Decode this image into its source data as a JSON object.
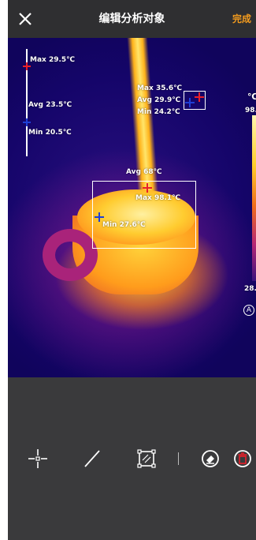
{
  "topbar": {
    "close_icon": "close-icon",
    "title": "编辑分析对象",
    "done_label": "完成",
    "done_color": "#f39b1e"
  },
  "line_tool": {
    "max_label": "Max 29.5℃",
    "avg_label": "Avg 23.5℃",
    "min_label": "Min 20.5℃"
  },
  "small_box": {
    "max_label": "Max 35.6℃",
    "avg_label": "Avg 29.9℃",
    "min_label": "Min 24.2℃"
  },
  "big_box": {
    "avg_label": "Avg 68℃",
    "max_label": "Max 98.1℃",
    "min_label": "Min 27.6℃"
  },
  "scale": {
    "unit": "℃",
    "top_value": "98.",
    "bottom_value": "28.",
    "auto_label": "A"
  },
  "toolbar": {
    "items": [
      {
        "icon": "point-tool-icon"
      },
      {
        "icon": "line-tool-icon"
      },
      {
        "icon": "area-tool-icon"
      },
      {
        "icon": "eraser-icon"
      },
      {
        "icon": "delete-icon"
      }
    ]
  },
  "colors": {
    "max_marker": "#e8202a",
    "min_marker": "#1f3fd6",
    "accent": "#f39b1e"
  }
}
